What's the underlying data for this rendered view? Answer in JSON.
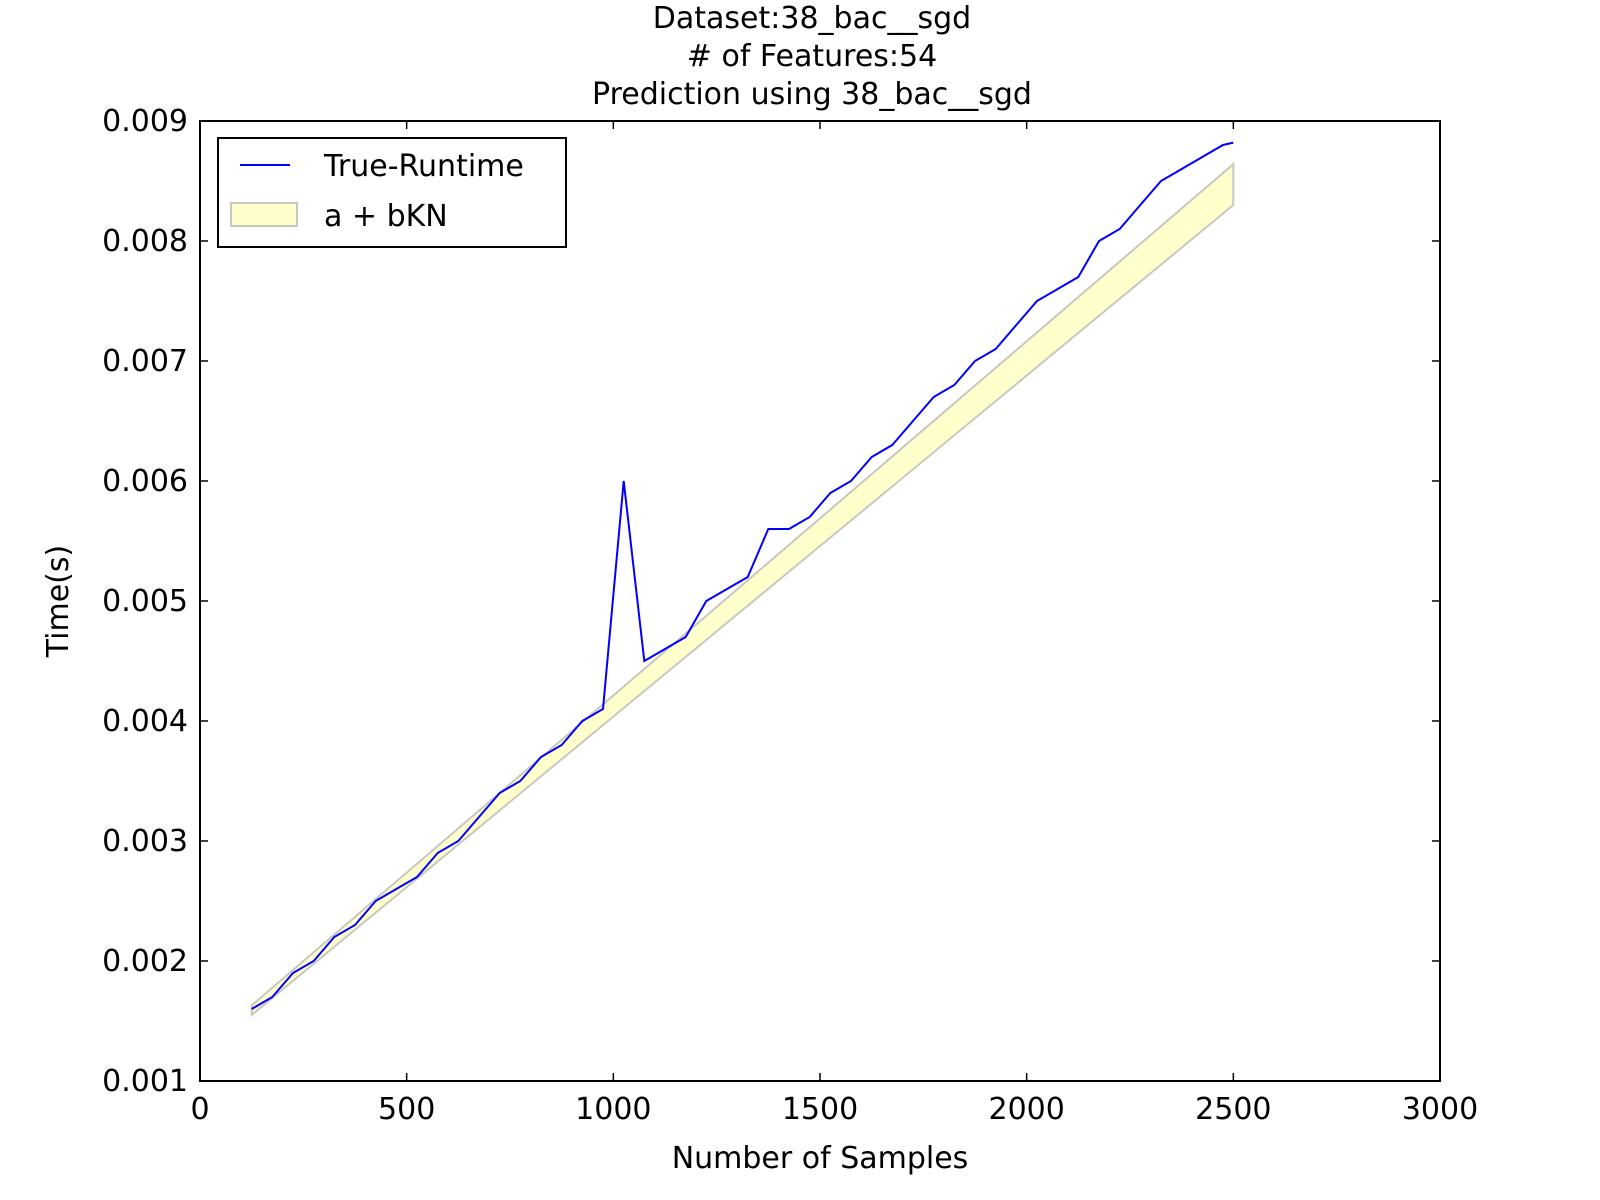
{
  "chart_data": {
    "type": "line",
    "title_lines": [
      "Dataset:38_bac__sgd",
      "# of Features:54",
      "Prediction using 38_bac__sgd"
    ],
    "xlabel": "Number of Samples",
    "ylabel": "Time(s)",
    "xlim": [
      0,
      3000
    ],
    "ylim": [
      0.001,
      0.009
    ],
    "x_ticks": [
      0,
      500,
      1000,
      1500,
      2000,
      2500,
      3000
    ],
    "x_tick_labels": [
      "0",
      "500",
      "1000",
      "1500",
      "2000",
      "2500",
      "3000"
    ],
    "y_ticks": [
      0.001,
      0.002,
      0.003,
      0.004,
      0.005,
      0.006,
      0.007,
      0.008,
      0.009
    ],
    "y_tick_labels": [
      "0.001",
      "0.002",
      "0.003",
      "0.004",
      "0.005",
      "0.006",
      "0.007",
      "0.008",
      "0.009"
    ],
    "grid": false,
    "legend_position": "top-left",
    "series": [
      {
        "name": "True-Runtime",
        "kind": "line",
        "color": "#0000ff",
        "x": [
          125,
          175,
          225,
          275,
          325,
          375,
          425,
          475,
          525,
          575,
          625,
          675,
          725,
          775,
          825,
          875,
          925,
          975,
          1025,
          1075,
          1125,
          1175,
          1225,
          1275,
          1325,
          1375,
          1425,
          1475,
          1525,
          1575,
          1625,
          1675,
          1725,
          1775,
          1825,
          1875,
          1925,
          1975,
          2025,
          2075,
          2125,
          2175,
          2225,
          2275,
          2325,
          2375,
          2425,
          2475,
          2500
        ],
        "y": [
          0.0016,
          0.0017,
          0.0019,
          0.002,
          0.0022,
          0.0023,
          0.0025,
          0.0026,
          0.0027,
          0.0029,
          0.003,
          0.0032,
          0.0034,
          0.0035,
          0.0037,
          0.0038,
          0.004,
          0.0041,
          0.006,
          0.0045,
          0.0046,
          0.0047,
          0.005,
          0.0051,
          0.0052,
          0.0056,
          0.0056,
          0.0057,
          0.0059,
          0.006,
          0.0062,
          0.0063,
          0.0065,
          0.0067,
          0.0068,
          0.007,
          0.0071,
          0.0073,
          0.0075,
          0.0076,
          0.0077,
          0.008,
          0.0081,
          0.0083,
          0.0085,
          0.0086,
          0.0087,
          0.0088,
          0.00882
        ]
      },
      {
        "name": "a + bKN",
        "kind": "band",
        "fill_color": "#ffffcc",
        "edge_color": "#c8c8c0",
        "x": [
          125,
          2500
        ],
        "lower": [
          0.00155,
          0.0083
        ],
        "upper": [
          0.00163,
          0.00864
        ]
      }
    ]
  }
}
